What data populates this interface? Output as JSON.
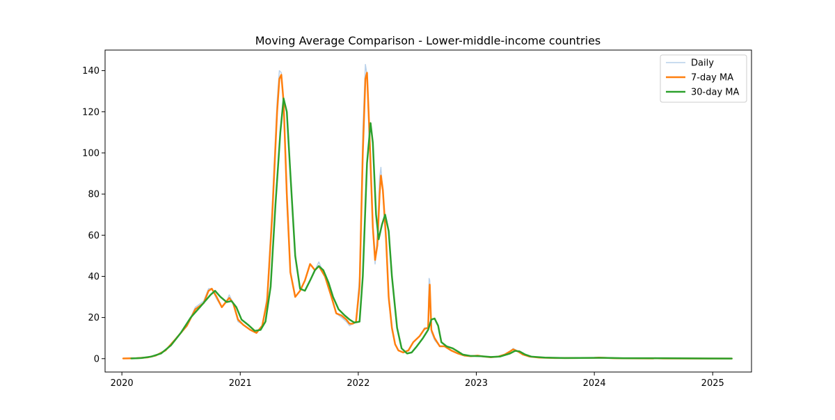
{
  "chart_data": {
    "type": "line",
    "title": "Moving Average Comparison - Lower-middle-income countries",
    "xlabel": "",
    "ylabel": "",
    "x_ticks": [
      "2020",
      "2021",
      "2022",
      "2023",
      "2024",
      "2025"
    ],
    "y_ticks": [
      0,
      20,
      40,
      60,
      80,
      100,
      120,
      140
    ],
    "xlim": [
      "2019-11-10",
      "2025-05-01"
    ],
    "ylim": [
      -6.5,
      150
    ],
    "grid": false,
    "legend_position": "top-right",
    "series": [
      {
        "name": "Daily",
        "color": "#aac8e6",
        "points": [
          [
            "2020-01-05",
            0.1
          ],
          [
            "2020-02-15",
            0.2
          ],
          [
            "2020-03-20",
            0.6
          ],
          [
            "2020-04-15",
            1.5
          ],
          [
            "2020-05-15",
            4
          ],
          [
            "2020-06-15",
            9.5
          ],
          [
            "2020-07-20",
            16
          ],
          [
            "2020-08-15",
            25
          ],
          [
            "2020-09-10",
            28
          ],
          [
            "2020-09-25",
            34
          ],
          [
            "2020-10-05",
            34
          ],
          [
            "2020-10-20",
            29
          ],
          [
            "2020-11-05",
            25
          ],
          [
            "2020-11-20",
            28
          ],
          [
            "2020-11-28",
            31
          ],
          [
            "2020-12-10",
            27
          ],
          [
            "2020-12-25",
            18
          ],
          [
            "2021-01-10",
            16.5
          ],
          [
            "2021-02-01",
            14
          ],
          [
            "2021-02-20",
            12.5
          ],
          [
            "2021-03-10",
            16
          ],
          [
            "2021-03-25",
            30
          ],
          [
            "2021-04-10",
            75
          ],
          [
            "2021-04-25",
            125
          ],
          [
            "2021-05-02",
            140
          ],
          [
            "2021-05-08",
            139
          ],
          [
            "2021-05-15",
            122
          ],
          [
            "2021-05-25",
            75
          ],
          [
            "2021-06-05",
            42
          ],
          [
            "2021-06-20",
            30
          ],
          [
            "2021-07-05",
            33
          ],
          [
            "2021-07-20",
            38
          ],
          [
            "2021-08-05",
            46
          ],
          [
            "2021-08-20",
            43
          ],
          [
            "2021-09-01",
            47
          ],
          [
            "2021-09-20",
            40
          ],
          [
            "2021-10-10",
            30
          ],
          [
            "2021-10-25",
            22
          ],
          [
            "2021-11-10",
            20
          ],
          [
            "2021-11-25",
            18
          ],
          [
            "2021-12-05",
            16
          ],
          [
            "2021-12-15",
            17
          ],
          [
            "2021-12-25",
            18
          ],
          [
            "2022-01-05",
            40
          ],
          [
            "2022-01-15",
            110
          ],
          [
            "2022-01-23",
            143
          ],
          [
            "2022-01-28",
            138
          ],
          [
            "2022-02-05",
            100
          ],
          [
            "2022-02-15",
            62
          ],
          [
            "2022-02-22",
            46
          ],
          [
            "2022-03-01",
            60
          ],
          [
            "2022-03-08",
            88
          ],
          [
            "2022-03-12",
            93
          ],
          [
            "2022-03-18",
            80
          ],
          [
            "2022-03-28",
            55
          ],
          [
            "2022-04-05",
            28
          ],
          [
            "2022-04-15",
            14
          ],
          [
            "2022-04-25",
            7
          ],
          [
            "2022-05-05",
            4
          ],
          [
            "2022-05-20",
            3
          ],
          [
            "2022-06-05",
            4
          ],
          [
            "2022-06-20",
            8
          ],
          [
            "2022-07-10",
            11
          ],
          [
            "2022-07-25",
            15
          ],
          [
            "2022-08-05",
            15
          ],
          [
            "2022-08-08",
            39
          ],
          [
            "2022-08-10",
            38
          ],
          [
            "2022-08-15",
            13
          ],
          [
            "2022-08-25",
            9
          ],
          [
            "2022-09-10",
            6
          ],
          [
            "2022-09-25",
            6
          ],
          [
            "2022-10-15",
            4
          ],
          [
            "2022-11-05",
            2.5
          ],
          [
            "2022-11-25",
            1.5
          ],
          [
            "2022-12-15",
            1.2
          ],
          [
            "2023-01-05",
            1.5
          ],
          [
            "2023-01-25",
            1
          ],
          [
            "2023-02-15",
            0.7
          ],
          [
            "2023-03-10",
            1
          ],
          [
            "2023-03-30",
            2
          ],
          [
            "2023-04-15",
            3.5
          ],
          [
            "2023-04-25",
            5
          ],
          [
            "2023-05-10",
            3.5
          ],
          [
            "2023-05-25",
            2
          ],
          [
            "2023-06-15",
            1
          ],
          [
            "2023-07-15",
            0.5
          ],
          [
            "2023-09-01",
            0.3
          ],
          [
            "2023-11-01",
            0.3
          ],
          [
            "2024-01-01",
            0.4
          ],
          [
            "2024-01-15",
            0.5
          ],
          [
            "2024-03-01",
            0.2
          ],
          [
            "2024-07-01",
            0.1
          ],
          [
            "2024-07-05",
            0.3
          ],
          [
            "2024-08-01",
            0.1
          ],
          [
            "2025-03-01",
            0.05
          ]
        ]
      },
      {
        "name": "7-day MA",
        "color": "#ff7f0e",
        "points": [
          [
            "2020-01-05",
            0.1
          ],
          [
            "2020-02-15",
            0.2
          ],
          [
            "2020-03-20",
            0.6
          ],
          [
            "2020-04-15",
            1.5
          ],
          [
            "2020-05-15",
            4
          ],
          [
            "2020-06-15",
            9.5
          ],
          [
            "2020-07-20",
            16
          ],
          [
            "2020-08-15",
            24
          ],
          [
            "2020-09-10",
            27
          ],
          [
            "2020-09-25",
            33
          ],
          [
            "2020-10-05",
            34
          ],
          [
            "2020-10-20",
            30
          ],
          [
            "2020-11-05",
            25
          ],
          [
            "2020-11-20",
            28
          ],
          [
            "2020-11-28",
            29.5
          ],
          [
            "2020-12-10",
            27
          ],
          [
            "2020-12-25",
            19
          ],
          [
            "2021-01-10",
            16.5
          ],
          [
            "2021-02-01",
            14
          ],
          [
            "2021-02-20",
            12.5
          ],
          [
            "2021-03-10",
            16
          ],
          [
            "2021-03-25",
            28
          ],
          [
            "2021-04-10",
            70
          ],
          [
            "2021-04-25",
            120
          ],
          [
            "2021-05-02",
            136
          ],
          [
            "2021-05-08",
            138
          ],
          [
            "2021-05-15",
            125
          ],
          [
            "2021-05-25",
            80
          ],
          [
            "2021-06-05",
            42
          ],
          [
            "2021-06-20",
            30
          ],
          [
            "2021-07-05",
            33
          ],
          [
            "2021-07-20",
            38
          ],
          [
            "2021-08-05",
            46
          ],
          [
            "2021-08-20",
            43
          ],
          [
            "2021-09-01",
            45
          ],
          [
            "2021-09-20",
            40
          ],
          [
            "2021-10-10",
            30
          ],
          [
            "2021-10-25",
            22
          ],
          [
            "2021-11-10",
            21
          ],
          [
            "2021-11-25",
            19
          ],
          [
            "2021-12-05",
            17
          ],
          [
            "2021-12-15",
            17
          ],
          [
            "2021-12-25",
            18
          ],
          [
            "2022-01-05",
            35
          ],
          [
            "2022-01-15",
            100
          ],
          [
            "2022-01-23",
            136
          ],
          [
            "2022-01-28",
            139
          ],
          [
            "2022-02-05",
            108
          ],
          [
            "2022-02-15",
            64
          ],
          [
            "2022-02-22",
            48
          ],
          [
            "2022-03-01",
            55
          ],
          [
            "2022-03-08",
            80
          ],
          [
            "2022-03-12",
            89
          ],
          [
            "2022-03-18",
            82
          ],
          [
            "2022-03-28",
            58
          ],
          [
            "2022-04-05",
            30
          ],
          [
            "2022-04-15",
            15
          ],
          [
            "2022-04-25",
            7
          ],
          [
            "2022-05-05",
            4
          ],
          [
            "2022-05-20",
            3
          ],
          [
            "2022-06-05",
            4
          ],
          [
            "2022-06-20",
            8
          ],
          [
            "2022-07-10",
            11
          ],
          [
            "2022-07-25",
            14.5
          ],
          [
            "2022-08-05",
            15
          ],
          [
            "2022-08-08",
            30
          ],
          [
            "2022-08-10",
            36
          ],
          [
            "2022-08-15",
            14
          ],
          [
            "2022-08-25",
            10
          ],
          [
            "2022-09-10",
            6
          ],
          [
            "2022-09-25",
            6
          ],
          [
            "2022-10-15",
            4
          ],
          [
            "2022-11-05",
            2.5
          ],
          [
            "2022-11-25",
            1.5
          ],
          [
            "2022-12-15",
            1.2
          ],
          [
            "2023-01-05",
            1.5
          ],
          [
            "2023-01-25",
            1
          ],
          [
            "2023-02-15",
            0.7
          ],
          [
            "2023-03-10",
            1
          ],
          [
            "2023-03-30",
            2
          ],
          [
            "2023-04-15",
            3.5
          ],
          [
            "2023-04-25",
            4.5
          ],
          [
            "2023-05-10",
            3.5
          ],
          [
            "2023-05-25",
            2
          ],
          [
            "2023-06-15",
            1
          ],
          [
            "2023-07-15",
            0.5
          ],
          [
            "2023-09-01",
            0.3
          ],
          [
            "2023-11-01",
            0.3
          ],
          [
            "2024-01-01",
            0.4
          ],
          [
            "2024-01-15",
            0.5
          ],
          [
            "2024-03-01",
            0.2
          ],
          [
            "2024-07-01",
            0.1
          ],
          [
            "2024-07-05",
            0.2
          ],
          [
            "2024-08-01",
            0.1
          ],
          [
            "2025-03-01",
            0.05
          ]
        ]
      },
      {
        "name": "30-day MA",
        "color": "#2ca02c",
        "points": [
          [
            "2020-01-30",
            0.1
          ],
          [
            "2020-03-01",
            0.3
          ],
          [
            "2020-04-01",
            1
          ],
          [
            "2020-05-01",
            2.5
          ],
          [
            "2020-06-01",
            6.5
          ],
          [
            "2020-07-01",
            12.5
          ],
          [
            "2020-08-01",
            20
          ],
          [
            "2020-09-01",
            25.5
          ],
          [
            "2020-10-01",
            31
          ],
          [
            "2020-10-15",
            33
          ],
          [
            "2020-11-01",
            30
          ],
          [
            "2020-11-20",
            27.5
          ],
          [
            "2020-12-05",
            28
          ],
          [
            "2020-12-20",
            25
          ],
          [
            "2021-01-05",
            19
          ],
          [
            "2021-01-25",
            16.5
          ],
          [
            "2021-02-15",
            13.5
          ],
          [
            "2021-03-05",
            14
          ],
          [
            "2021-03-20",
            18
          ],
          [
            "2021-04-05",
            35
          ],
          [
            "2021-04-20",
            75
          ],
          [
            "2021-05-05",
            110
          ],
          [
            "2021-05-15",
            126.5
          ],
          [
            "2021-05-25",
            120
          ],
          [
            "2021-06-05",
            90
          ],
          [
            "2021-06-20",
            50
          ],
          [
            "2021-07-05",
            34
          ],
          [
            "2021-07-20",
            33
          ],
          [
            "2021-08-05",
            38
          ],
          [
            "2021-08-20",
            43
          ],
          [
            "2021-09-01",
            45
          ],
          [
            "2021-09-15",
            43
          ],
          [
            "2021-10-01",
            37
          ],
          [
            "2021-10-15",
            30
          ],
          [
            "2021-11-01",
            24
          ],
          [
            "2021-11-20",
            21
          ],
          [
            "2021-12-05",
            19
          ],
          [
            "2021-12-20",
            17.5
          ],
          [
            "2022-01-05",
            18
          ],
          [
            "2022-01-15",
            40
          ],
          [
            "2022-01-28",
            95
          ],
          [
            "2022-02-08",
            114.5
          ],
          [
            "2022-02-15",
            105
          ],
          [
            "2022-02-25",
            70
          ],
          [
            "2022-03-05",
            58
          ],
          [
            "2022-03-15",
            65
          ],
          [
            "2022-03-25",
            70
          ],
          [
            "2022-04-05",
            62
          ],
          [
            "2022-04-15",
            40
          ],
          [
            "2022-05-01",
            15
          ],
          [
            "2022-05-15",
            5
          ],
          [
            "2022-06-01",
            2.5
          ],
          [
            "2022-06-15",
            3
          ],
          [
            "2022-07-01",
            6
          ],
          [
            "2022-07-20",
            10
          ],
          [
            "2022-08-05",
            14
          ],
          [
            "2022-08-15",
            19
          ],
          [
            "2022-08-25",
            19.5
          ],
          [
            "2022-09-05",
            16
          ],
          [
            "2022-09-15",
            8
          ],
          [
            "2022-10-01",
            6
          ],
          [
            "2022-10-20",
            5
          ],
          [
            "2022-11-05",
            3.5
          ],
          [
            "2022-11-20",
            2
          ],
          [
            "2022-12-15",
            1.3
          ],
          [
            "2023-01-15",
            1.2
          ],
          [
            "2023-02-15",
            0.8
          ],
          [
            "2023-03-15",
            1
          ],
          [
            "2023-04-15",
            2.5
          ],
          [
            "2023-05-01",
            3.8
          ],
          [
            "2023-05-15",
            3.5
          ],
          [
            "2023-06-01",
            2
          ],
          [
            "2023-06-20",
            1
          ],
          [
            "2023-08-01",
            0.5
          ],
          [
            "2023-10-01",
            0.3
          ],
          [
            "2024-01-01",
            0.4
          ],
          [
            "2024-02-01",
            0.4
          ],
          [
            "2024-04-01",
            0.2
          ],
          [
            "2024-08-01",
            0.2
          ],
          [
            "2025-03-01",
            0.05
          ]
        ]
      }
    ]
  }
}
